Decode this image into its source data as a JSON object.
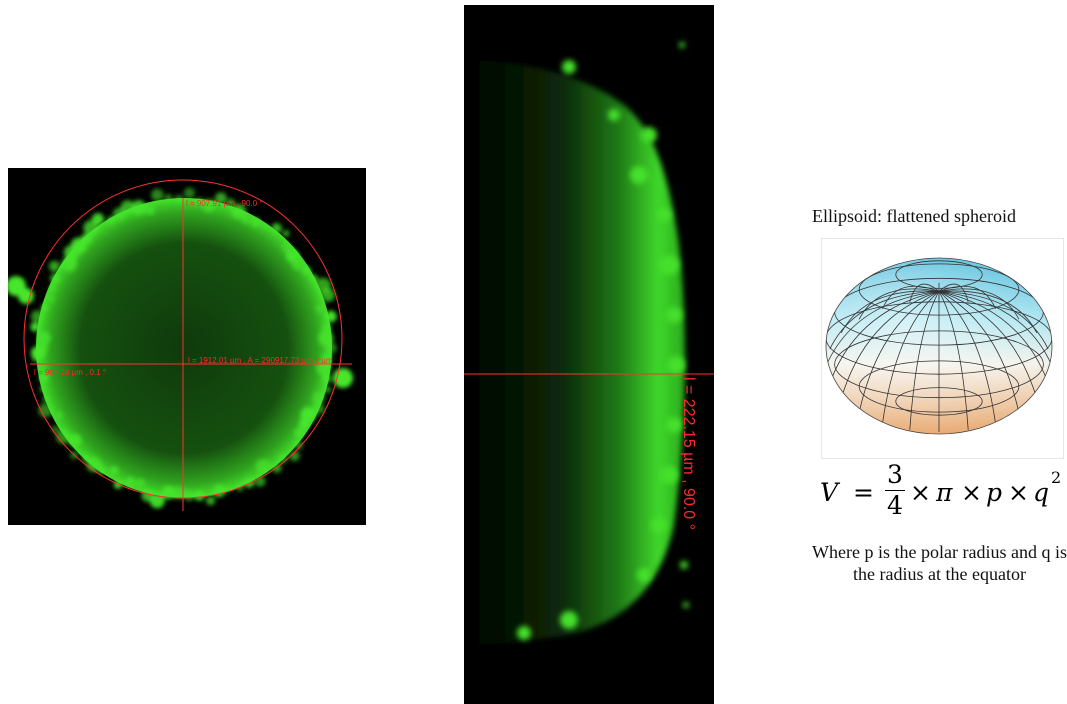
{
  "top_view": {
    "label_vertical": "l = 907.91 µm ,  90.0 °",
    "label_center": "l = 1912.01 µm ,  A = 290917.73 µm x µm",
    "label_horizontal": "l = 907.28 µm ,  0.1 °",
    "measure_color": "#ff2a2a",
    "fluorescence_color": "#33dd22"
  },
  "side_view": {
    "label": "l = 222.15 µm ,  90.0 °"
  },
  "ellipsoid": {
    "title": "Ellipsoid: flattened spheroid"
  },
  "formula": {
    "lhs": "V",
    "equals": "=",
    "numerator": "3",
    "denominator": "4",
    "times1": "×",
    "pi": "π",
    "times2": "×",
    "p": "p",
    "times3": "×",
    "q": "q",
    "exponent": "2"
  },
  "caption": {
    "text": "Where p is the polar radius and q is the radius at the equator"
  }
}
